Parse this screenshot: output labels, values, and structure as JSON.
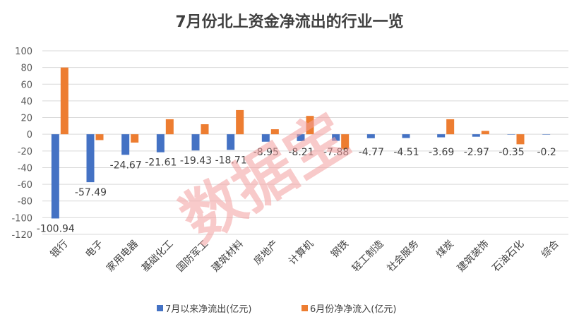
{
  "chart_data": {
    "type": "bar",
    "title": "7月份北上资金净流出的行业一览",
    "categories": [
      "银行",
      "电子",
      "家用电器",
      "基础化工",
      "国防军工",
      "建筑材料",
      "房地产",
      "计算机",
      "钢铁",
      "轻工制造",
      "社会服务",
      "煤炭",
      "建筑装饰",
      "石油石化",
      "综合"
    ],
    "series": [
      {
        "name": "7月以来净流出(亿元)",
        "color": "#4472C4",
        "values": [
          -100.94,
          -57.49,
          -24.67,
          -21.61,
          -19.43,
          -18.71,
          -8.95,
          -8.21,
          -7.88,
          -4.77,
          -4.51,
          -3.69,
          -2.97,
          -0.35,
          -0.2
        ],
        "labels": [
          "-100.94",
          "-57.49",
          "-24.67",
          "-21.61",
          "-19.43",
          "-18.71",
          "-8.95",
          "-8.21",
          "-7.88",
          "-4.77",
          "-4.51",
          "-3.69",
          "-2.97",
          "-0.35",
          "-0.2"
        ]
      },
      {
        "name": "6月份净净流入(亿元)",
        "color": "#ED7D31",
        "values": [
          80,
          -7,
          -10,
          18,
          12,
          29,
          6,
          22,
          -18,
          0,
          0,
          18,
          4,
          -12,
          0
        ]
      }
    ],
    "ylim": [
      -120,
      100
    ],
    "yticks": [
      "100",
      "80",
      "60",
      "40",
      "20",
      "0",
      "-20",
      "-40",
      "-60",
      "-80",
      "-100",
      "-120"
    ],
    "grid": true,
    "legend_position": "bottom",
    "watermark": "数据宝"
  }
}
